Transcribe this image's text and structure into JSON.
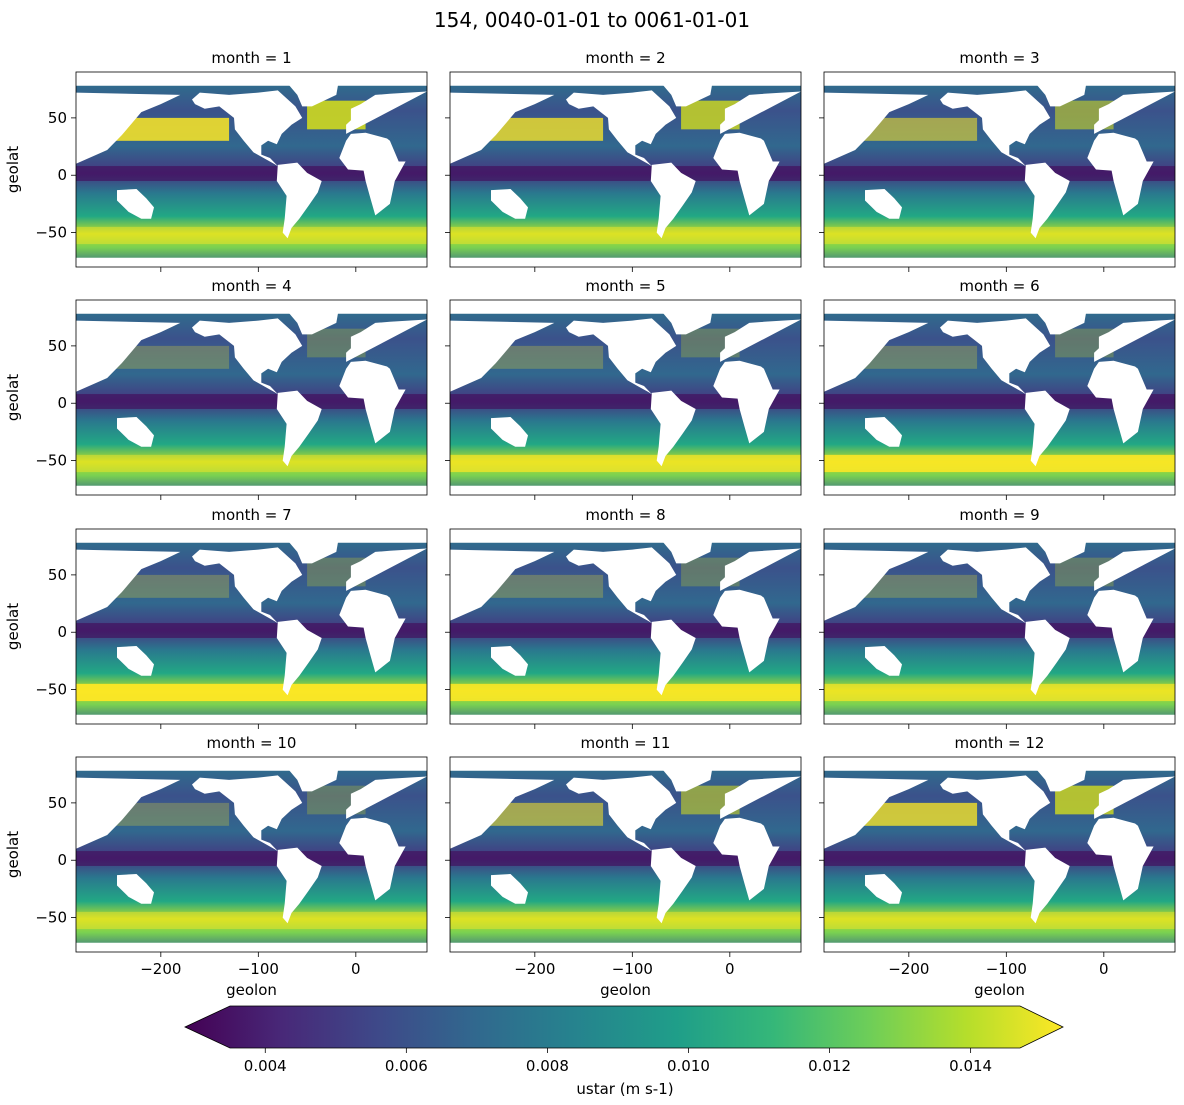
{
  "figure": {
    "suptitle": "154, 0040-01-01 to 0061-01-01"
  },
  "chart_data": {
    "type": "heatmap",
    "layout": {
      "rows": 4,
      "cols": 3,
      "sharex": true,
      "sharey": true
    },
    "panels": [
      {
        "title": "month = 1"
      },
      {
        "title": "month = 2"
      },
      {
        "title": "month = 3"
      },
      {
        "title": "month = 4"
      },
      {
        "title": "month = 5"
      },
      {
        "title": "month = 6"
      },
      {
        "title": "month = 7"
      },
      {
        "title": "month = 8"
      },
      {
        "title": "month = 9"
      },
      {
        "title": "month = 10"
      },
      {
        "title": "month = 11"
      },
      {
        "title": "month = 12"
      }
    ],
    "xlabel": "geolon",
    "ylabel": "geolat",
    "xlim": [
      -287,
      73
    ],
    "ylim": [
      -80,
      90
    ],
    "xticks": [
      -200,
      -100,
      0
    ],
    "xtick_labels": [
      "−200",
      "−100",
      "0"
    ],
    "yticks": [
      50,
      0,
      -50
    ],
    "ytick_labels": [
      "50",
      "0",
      "−50"
    ],
    "colorbar": {
      "label": "ustar (m s-1)",
      "colormap": "viridis",
      "vmin": 0.0035,
      "vmax": 0.0147,
      "extend": "both",
      "ticks": [
        0.004,
        0.006,
        0.008,
        0.01,
        0.012,
        0.014
      ],
      "tick_labels": [
        "0.004",
        "0.006",
        "0.008",
        "0.010",
        "0.012",
        "0.014"
      ],
      "colors": [
        "#440154",
        "#482878",
        "#3e4989",
        "#31688e",
        "#26828e",
        "#1f9e89",
        "#35b779",
        "#6ece58",
        "#b5de2b",
        "#fde725"
      ]
    },
    "land_color": "#ffffff"
  }
}
